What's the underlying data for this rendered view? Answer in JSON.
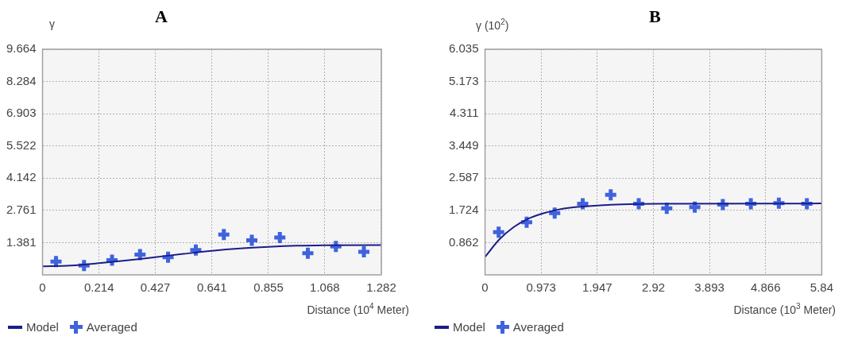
{
  "chart_data": [
    {
      "type": "scatter",
      "title": "A",
      "ylabel": "γ",
      "xlabel": "Distance (10$^{4}$ Meter)",
      "xlim": [
        0,
        1.282
      ],
      "xticks": [
        0,
        0.214,
        0.427,
        0.641,
        0.855,
        1.068,
        1.282
      ],
      "ylim": [
        0,
        9.664
      ],
      "yticks": [
        1.381,
        2.761,
        4.142,
        5.522,
        6.903,
        8.284,
        9.664
      ],
      "grid": true,
      "legend": "bottom left",
      "series": [
        {
          "name": "Model",
          "type": "line",
          "marker": "none",
          "color": "#1c1c8a",
          "x": [
            0,
            0.107,
            0.214,
            0.32,
            0.427,
            0.534,
            0.641,
            0.748,
            0.855,
            0.962,
            1.068,
            1.282
          ],
          "values": [
            0.37,
            0.4,
            0.5,
            0.62,
            0.76,
            0.9,
            1.03,
            1.13,
            1.2,
            1.25,
            1.27,
            1.28
          ]
        },
        {
          "name": "Averaged",
          "type": "scatter",
          "marker": "cross",
          "color": "#3f63dd",
          "x": [
            0.051,
            0.157,
            0.263,
            0.369,
            0.475,
            0.58,
            0.686,
            0.792,
            0.898,
            1.004,
            1.11,
            1.216
          ],
          "values": [
            0.57,
            0.4,
            0.63,
            0.87,
            0.76,
            1.06,
            1.73,
            1.48,
            1.6,
            0.93,
            1.22,
            0.99
          ]
        }
      ]
    },
    {
      "type": "scatter",
      "title": "B",
      "ylabel": "γ (10$^{2}$)",
      "xlabel": "Distance (10$^{3}$ Meter)",
      "xlim": [
        0,
        5.84
      ],
      "xticks": [
        0,
        0.973,
        1.947,
        2.92,
        3.893,
        4.866,
        5.84
      ],
      "ylim": [
        0,
        6.035
      ],
      "yticks": [
        0.862,
        1.724,
        2.587,
        3.449,
        4.311,
        5.173,
        6.035
      ],
      "grid": true,
      "legend": "bottom left",
      "series": [
        {
          "name": "Model",
          "type": "line",
          "marker": "none",
          "color": "#1c1c8a",
          "x": [
            0,
            0.25,
            0.5,
            0.75,
            1.0,
            1.25,
            1.5,
            2.0,
            2.5,
            3.0,
            5.84
          ],
          "values": [
            0.48,
            0.95,
            1.28,
            1.5,
            1.64,
            1.74,
            1.8,
            1.86,
            1.89,
            1.9,
            1.91
          ]
        },
        {
          "name": "Averaged",
          "type": "scatter",
          "marker": "cross",
          "color": "#3f63dd",
          "x": [
            0.236,
            0.722,
            1.208,
            1.694,
            2.18,
            2.666,
            3.152,
            3.638,
            4.124,
            4.61,
            5.096,
            5.582
          ],
          "values": [
            1.14,
            1.41,
            1.65,
            1.9,
            2.14,
            1.9,
            1.78,
            1.81,
            1.88,
            1.9,
            1.92,
            1.9
          ]
        }
      ]
    }
  ]
}
